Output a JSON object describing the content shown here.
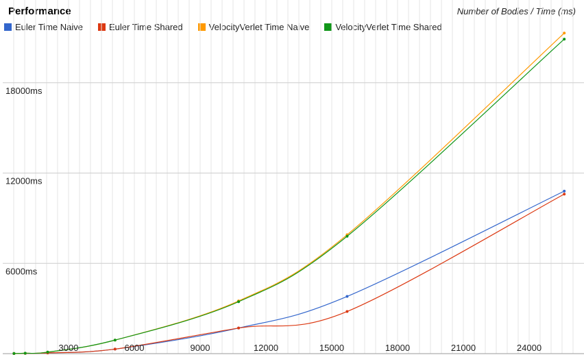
{
  "chart_data": {
    "type": "line",
    "title": "Performance",
    "subtitle": "Number of Bodies / Time (ms)",
    "xlabel": "",
    "ylabel": "",
    "x_ticks": [
      "3000",
      "6000",
      "9000",
      "12000",
      "15000",
      "18000",
      "21000",
      "24000"
    ],
    "y_ticks": [
      "6000ms",
      "12000ms",
      "18000ms"
    ],
    "xlim": [
      0,
      26500
    ],
    "ylim": [
      0,
      23500
    ],
    "grid": true,
    "legend_position": "top",
    "x": [
      512,
      1024,
      2048,
      5120,
      10752,
      15700,
      25600
    ],
    "series": [
      {
        "name": "Euler Time Naive",
        "color": "#3366cc",
        "values": [
          5,
          15,
          45,
          300,
          1700,
          3800,
          10800
        ]
      },
      {
        "name": "Euler Time Shared",
        "color": "#dc3912",
        "values": [
          5,
          15,
          45,
          300,
          1700,
          2800,
          10600
        ]
      },
      {
        "name": "VelocityVerlet Time Naive",
        "color": "#ff9900",
        "values": [
          10,
          30,
          100,
          900,
          3500,
          7900,
          21300
        ]
      },
      {
        "name": "VelocityVerlet Time Shared",
        "color": "#109618",
        "values": [
          10,
          30,
          100,
          900,
          3450,
          7800,
          20900
        ]
      }
    ]
  }
}
